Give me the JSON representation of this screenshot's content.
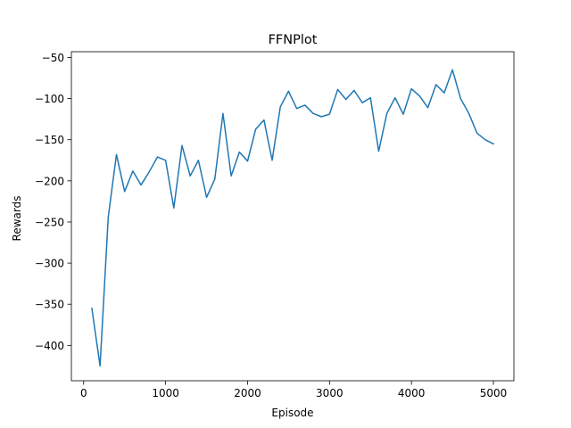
{
  "chart_data": {
    "type": "line",
    "title": "FFNPlot",
    "xlabel": "Episode",
    "ylabel": "Rewards",
    "xlim": [
      -150,
      5250
    ],
    "ylim": [
      -443,
      -43
    ],
    "xticks": [
      0,
      1000,
      2000,
      3000,
      4000,
      5000
    ],
    "yticks": [
      -400,
      -350,
      -300,
      -250,
      -200,
      -150,
      -100,
      -50
    ],
    "xtick_labels": [
      "0",
      "1000",
      "2000",
      "3000",
      "4000",
      "5000"
    ],
    "ytick_labels": [
      "−400",
      "−350",
      "−300",
      "−250",
      "−200",
      "−150",
      "−100",
      "−50"
    ],
    "grid": false,
    "series": [
      {
        "color": "#1f77b4",
        "x": [
          100,
          200,
          300,
          400,
          500,
          600,
          700,
          800,
          900,
          1000,
          1100,
          1200,
          1300,
          1400,
          1500,
          1600,
          1700,
          1800,
          1900,
          2000,
          2100,
          2200,
          2300,
          2400,
          2500,
          2600,
          2700,
          2800,
          2900,
          3000,
          3100,
          3200,
          3300,
          3400,
          3500,
          3600,
          3700,
          3800,
          3900,
          4000,
          4100,
          4200,
          4300,
          4400,
          4500,
          4600,
          4700,
          4800,
          4900,
          5000
        ],
        "y": [
          -355,
          -425,
          -244,
          -168,
          -213,
          -188,
          -205,
          -189,
          -171,
          -175,
          -233,
          -157,
          -194,
          -175,
          -220,
          -198,
          -118,
          -194,
          -165,
          -176,
          -137,
          -126,
          -175,
          -110,
          -91,
          -112,
          -108,
          -118,
          -122,
          -119,
          -89,
          -101,
          -90,
          -105,
          -99,
          -164,
          -118,
          -99,
          -119,
          -88,
          -97,
          -111,
          -83,
          -93,
          -65,
          -100,
          -118,
          -142,
          -150,
          -155
        ]
      }
    ]
  }
}
